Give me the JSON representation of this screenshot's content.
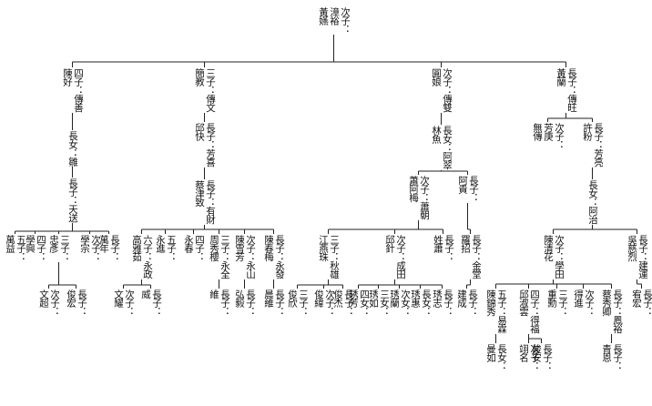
{
  "nodes": [
    {
      "id": "r",
      "cols": [
        "次子：",
        "漳裕",
        "黃嬿"
      ]
    },
    {
      "id": "a",
      "cols": [
        "四子：傳善",
        "陳好"
      ]
    },
    {
      "id": "a1",
      "cols": [
        "長女：雛"
      ]
    },
    {
      "id": "a2",
      "cols": [
        "長子：天送"
      ]
    },
    {
      "id": "a3",
      "cols": [
        "五子：",
        "萬益"
      ]
    },
    {
      "id": "a4",
      "cols": [
        "四子：",
        "學興"
      ]
    },
    {
      "id": "a5",
      "cols": [
        "三子：",
        "忠彥"
      ]
    },
    {
      "id": "a6",
      "cols": [
        "次子：",
        "學宗"
      ]
    },
    {
      "id": "a7",
      "cols": [
        "長子：",
        "萬年"
      ]
    },
    {
      "id": "a8",
      "cols": [
        "次子：",
        "文超"
      ]
    },
    {
      "id": "a9",
      "cols": [
        "長子：",
        "俊宏"
      ]
    },
    {
      "id": "b",
      "cols": [
        "三子：傳文",
        "簡教"
      ]
    },
    {
      "id": "b1",
      "cols": [
        "長子：芳喜",
        "邱快"
      ]
    },
    {
      "id": "b2",
      "cols": [
        "長子：有財",
        "蔡津致"
      ]
    },
    {
      "id": "b3",
      "cols": [
        "六子：永政",
        "高雅茹"
      ]
    },
    {
      "id": "b4",
      "cols": [
        "五子：",
        "永進"
      ]
    },
    {
      "id": "b5",
      "cols": [
        "四子：",
        "永春"
      ]
    },
    {
      "id": "b6",
      "cols": [
        "三子：永全",
        "周秀櫻"
      ]
    },
    {
      "id": "b7",
      "cols": [
        "次子：永山",
        "陳雪芳"
      ]
    },
    {
      "id": "b8",
      "cols": [
        "長子：永發",
        "陳春梅"
      ]
    },
    {
      "id": "b9",
      "cols": [
        "次子：",
        "文耀"
      ]
    },
    {
      "id": "b10",
      "cols": [
        "長子：",
        "威"
      ]
    },
    {
      "id": "b11",
      "cols": [
        "長子：",
        "維"
      ]
    },
    {
      "id": "b12",
      "cols": [
        "長子：",
        "弘毅"
      ]
    },
    {
      "id": "b13",
      "cols": [
        "長子：",
        "晨維"
      ]
    },
    {
      "id": "c",
      "cols": [
        "次子：傳雙",
        "圓娘"
      ]
    },
    {
      "id": "c1",
      "cols": [
        "長女：阿翠",
        "林魚"
      ]
    },
    {
      "id": "c2",
      "cols": [
        "次子：蕭朝",
        "蕭阿梅"
      ]
    },
    {
      "id": "c3",
      "cols": [
        "長子：",
        "阿貴"
      ]
    },
    {
      "id": "c4",
      "cols": [
        "三子：秋雄",
        "江燕珠"
      ]
    },
    {
      "id": "c5",
      "cols": [
        "次子：成田",
        "邱針"
      ]
    },
    {
      "id": "c6",
      "cols": [
        "長子：",
        "姓蕭"
      ]
    },
    {
      "id": "c7",
      "cols": [
        "長子：金堂",
        "羅招"
      ]
    },
    {
      "id": "c8",
      "cols": [
        "三子：",
        "俊欣"
      ]
    },
    {
      "id": "c9",
      "cols": [
        "次子：",
        "俊緯"
      ]
    },
    {
      "id": "c10",
      "cols": [
        "長子：",
        "俊杰"
      ]
    },
    {
      "id": "c11",
      "cols": [
        "四女：",
        "琇芳"
      ]
    },
    {
      "id": "c12",
      "cols": [
        "三女：",
        "琇如"
      ]
    },
    {
      "id": "c13",
      "cols": [
        "次女：",
        "琇蘭"
      ]
    },
    {
      "id": "c14",
      "cols": [
        "長女：",
        "琇惠"
      ]
    },
    {
      "id": "c15",
      "cols": [
        "長子：",
        "琇志"
      ]
    },
    {
      "id": "c16",
      "cols": [
        "長子：",
        "建成"
      ]
    },
    {
      "id": "d",
      "cols": [
        "長子：傳旺",
        "黃蘭"
      ]
    },
    {
      "id": "d1",
      "cols": [
        "次子：",
        "芳庚",
        "無傳"
      ]
    },
    {
      "id": "d2",
      "cols": [
        "長子：芳亮",
        "許粉"
      ]
    },
    {
      "id": "d3",
      "cols": [
        "長女：阿治"
      ]
    },
    {
      "id": "d4",
      "cols": [
        "次子：學田",
        "陳清花"
      ]
    },
    {
      "id": "d5",
      "cols": [
        "長子：建運",
        "吳慈烈"
      ]
    },
    {
      "id": "d6",
      "cols": [
        "五子：易霖",
        "陳錦秀"
      ]
    },
    {
      "id": "d7",
      "cols": [
        "四子：得福",
        "邱淑雲"
      ]
    },
    {
      "id": "d8",
      "cols": [
        "三子：",
        "重勳"
      ]
    },
    {
      "id": "d9",
      "cols": [
        "次子：",
        "得進"
      ]
    },
    {
      "id": "d10",
      "cols": [
        "長子：鳳裕",
        "蔡秀卿"
      ]
    },
    {
      "id": "d11",
      "cols": [
        "長子：",
        "宥宏"
      ]
    },
    {
      "id": "d12",
      "cols": [
        "長女：",
        "曼如"
      ]
    },
    {
      "id": "d13",
      "cols": [
        "次子：",
        "翊名"
      ]
    },
    {
      "id": "d14",
      "cols": [
        "長子：",
        "峻安"
      ]
    },
    {
      "id": "d15",
      "cols": [
        "長子：",
        "青恩"
      ]
    }
  ]
}
